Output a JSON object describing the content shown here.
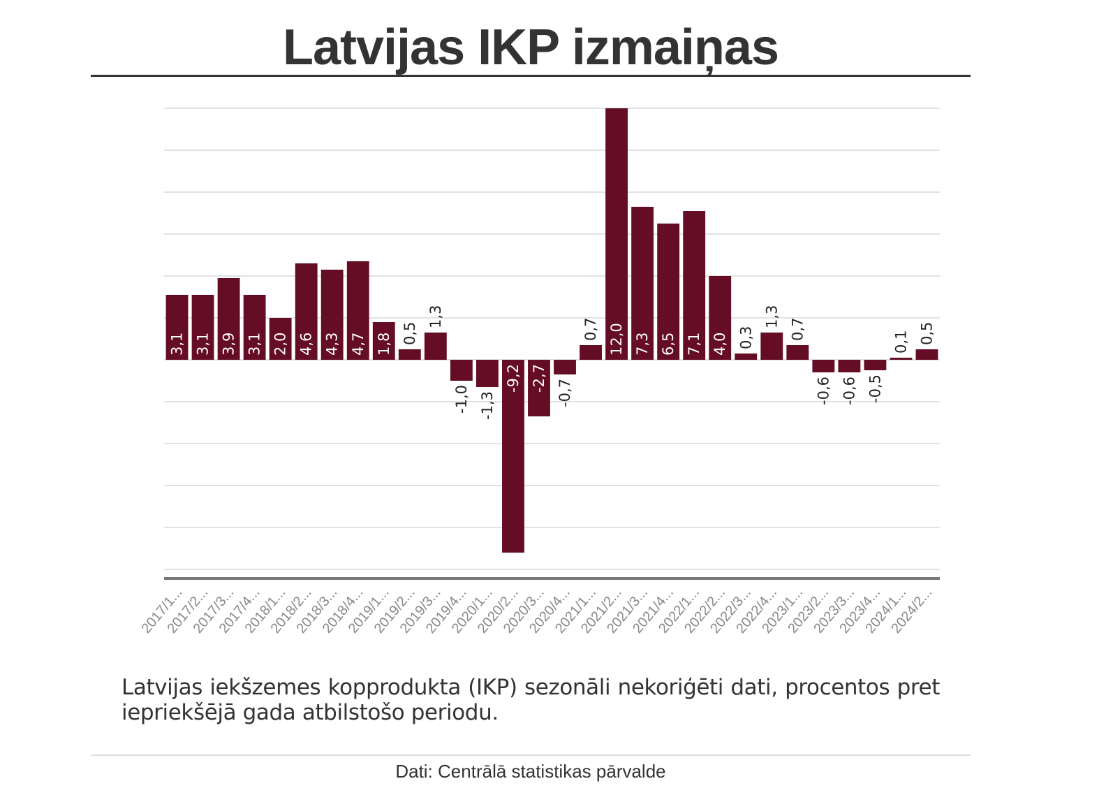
{
  "title": "Latvijas IKP izmaiņas",
  "caption": "Latvijas iekšzemes kopprodukta (IKP) sezonāli nekoriģēti dati, procentos pret iepriekšējā gada atbilstošo periodu.",
  "source": "Dati: Centrālā statistikas pārvalde",
  "colors": {
    "bar": "#650d24",
    "grid": "#e2e2e2",
    "axis": "#777777",
    "label_inside": "#ffffff",
    "label_outside": "#222222",
    "tick": "#888888"
  },
  "chart_data": {
    "type": "bar",
    "categories": [
      "2017/1...",
      "2017/2...",
      "2017/3...",
      "2017/4...",
      "2018/1...",
      "2018/2...",
      "2018/3...",
      "2018/4...",
      "2019/1...",
      "2019/2...",
      "2019/3...",
      "2019/4...",
      "2020/1...",
      "2020/2...",
      "2020/3...",
      "2020/4...",
      "2021/1...",
      "2021/2...",
      "2021/3...",
      "2021/4...",
      "2022/1...",
      "2022/2...",
      "2022/3...",
      "2022/4...",
      "2023/1...",
      "2023/2...",
      "2023/3...",
      "2023/4...",
      "2024/1...",
      "2024/2..."
    ],
    "values": [
      3.1,
      3.1,
      3.9,
      3.1,
      2.0,
      4.6,
      4.3,
      4.7,
      1.8,
      0.5,
      1.3,
      -1.0,
      -1.3,
      -9.2,
      -2.7,
      -0.7,
      0.7,
      12.0,
      7.3,
      6.5,
      7.1,
      4.0,
      0.3,
      1.3,
      0.7,
      -0.6,
      -0.6,
      -0.5,
      0.1,
      0.5
    ],
    "labels": [
      "3,1",
      "3,1",
      "3,9",
      "3,1",
      "2,0",
      "4,6",
      "4,3",
      "4,7",
      "1,8",
      "0,5",
      "1,3",
      "-1,0",
      "-1,3",
      "-9,2",
      "-2,7",
      "-0,7",
      "0,7",
      "12,0",
      "7,3",
      "6,5",
      "7,1",
      "4,0",
      "0,3",
      "1,3",
      "0,7",
      "-0,6",
      "-0,6",
      "-0,5",
      "0,1",
      "0,5"
    ],
    "ylim": [
      -10,
      12
    ],
    "grid": true,
    "xlabel": "",
    "ylabel": ""
  }
}
